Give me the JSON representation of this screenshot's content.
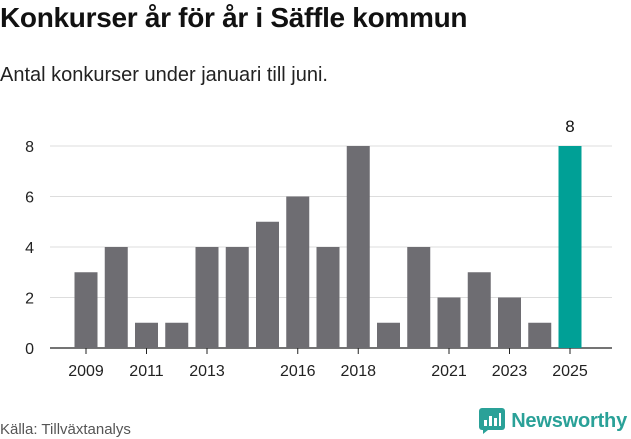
{
  "header": {
    "title": "Konkurser år för år i Säffle kommun",
    "subtitle": "Antal konkurser under januari till juni."
  },
  "footer": {
    "source": "Källa: Tillväxtanalys",
    "brand": "Newsworthy"
  },
  "colors": {
    "bar": "#6e6d72",
    "highlight": "#00a096",
    "grid": "#dddddd",
    "brand": "#2aa198"
  },
  "icons": {
    "brand_logo": "newsworthy-logo-icon"
  },
  "chart_data": {
    "type": "bar",
    "categories": [
      "2009",
      "2010",
      "2011",
      "2012",
      "2013",
      "2014",
      "2015",
      "2016",
      "2017",
      "2018",
      "2019",
      "2020",
      "2021",
      "2022",
      "2023",
      "2024",
      "2025"
    ],
    "values": [
      3,
      4,
      1,
      1,
      4,
      4,
      5,
      6,
      4,
      8,
      1,
      4,
      2,
      3,
      2,
      1,
      8
    ],
    "x_tick_labels": [
      "2009",
      "2011",
      "2013",
      "2016",
      "2018",
      "2021",
      "2023",
      "2025"
    ],
    "y_ticks": [
      0,
      2,
      4,
      6,
      8
    ],
    "ylim": [
      0,
      8
    ],
    "grid": true,
    "highlight_category": "2025",
    "data_labels": [
      {
        "category": "2025",
        "text": "8"
      }
    ],
    "title": "Konkurser år för år i Säffle kommun",
    "subtitle": "Antal konkurser under januari till juni.",
    "xlabel": "",
    "ylabel": ""
  }
}
